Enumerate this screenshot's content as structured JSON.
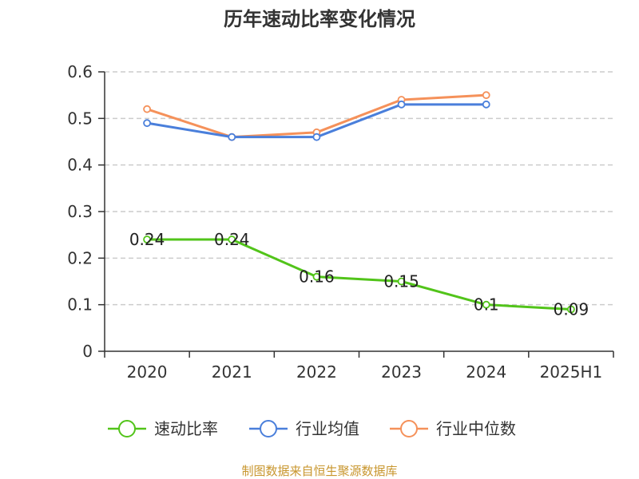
{
  "chart_data": {
    "type": "line",
    "title": "历年速动比率变化情况",
    "categories": [
      "2020",
      "2021",
      "2022",
      "2023",
      "2024",
      "2025H1"
    ],
    "y_ticks": [
      "0",
      "0.1",
      "0.2",
      "0.3",
      "0.4",
      "0.5",
      "0.6"
    ],
    "ylim": [
      0,
      0.6
    ],
    "grid": true,
    "legend_position": "bottom",
    "series": [
      {
        "name": "速动比率",
        "color": "#52c41a",
        "values": [
          0.24,
          0.24,
          0.16,
          0.15,
          0.1,
          0.09
        ],
        "data_labels": [
          "0.24",
          "0.24",
          "0.16",
          "0.15",
          "0.1",
          "0.09"
        ]
      },
      {
        "name": "行业均值",
        "color": "#4a7fdb",
        "values": [
          0.49,
          0.46,
          0.46,
          0.53,
          0.53,
          null
        ]
      },
      {
        "name": "行业中位数",
        "color": "#f5915a",
        "values": [
          0.52,
          0.46,
          0.47,
          0.54,
          0.55,
          null
        ]
      }
    ]
  },
  "source_text": "制图数据来自恒生聚源数据库",
  "source_color": "#c8962e"
}
